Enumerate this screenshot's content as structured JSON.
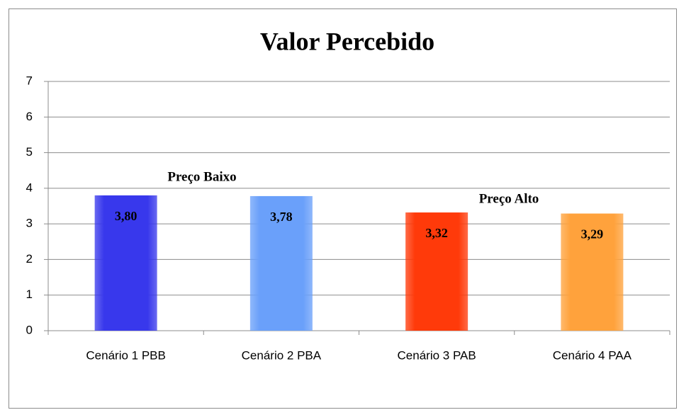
{
  "chart_data": {
    "type": "bar",
    "title": "Valor Percebido",
    "categories": [
      "Cenário 1 PBB",
      "Cenário 2 PBA",
      "Cenário 3 PAB",
      "Cenário 4 PAA"
    ],
    "values": [
      3.8,
      3.78,
      3.32,
      3.29
    ],
    "value_labels": [
      "3,80",
      "3,78",
      "3,32",
      "3,29"
    ],
    "colors": [
      "#3838ec",
      "#6aa0fa",
      "#ff3a0a",
      "#ffa23c"
    ],
    "annotations": [
      "Preço Baixo",
      "Preço Alto"
    ],
    "ylim": [
      0,
      7
    ],
    "yticks": [
      0,
      1,
      2,
      3,
      4,
      5,
      6,
      7
    ],
    "grid": true
  }
}
